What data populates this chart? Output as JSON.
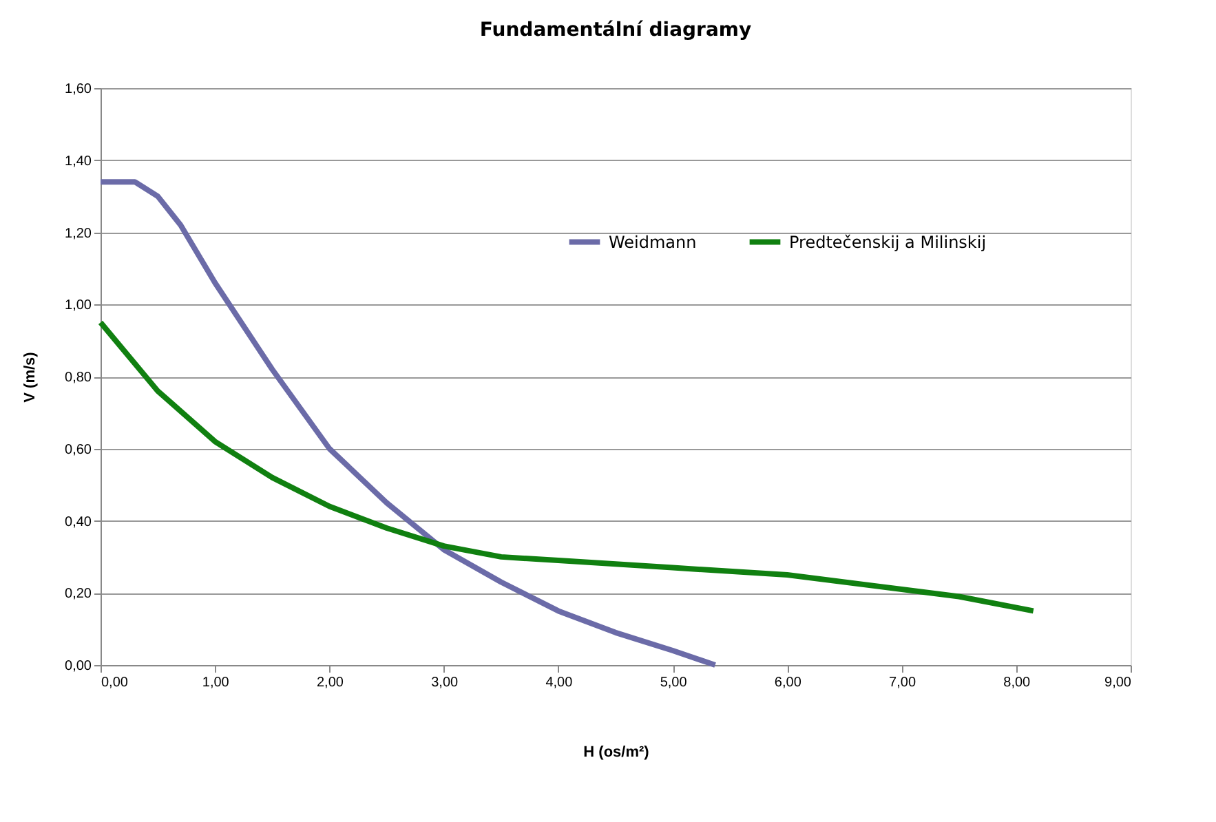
{
  "chart_data": {
    "type": "line",
    "title": "Fundamentální diagramy",
    "xlabel": "H (os/m²)",
    "ylabel": "V (m/s)",
    "xlim": [
      0,
      9
    ],
    "ylim": [
      0,
      1.6
    ],
    "xticks": [
      {
        "value": 0,
        "label": "0,00"
      },
      {
        "value": 1,
        "label": "1,00"
      },
      {
        "value": 2,
        "label": "2,00"
      },
      {
        "value": 3,
        "label": "3,00"
      },
      {
        "value": 4,
        "label": "4,00"
      },
      {
        "value": 5,
        "label": "5,00"
      },
      {
        "value": 6,
        "label": "6,00"
      },
      {
        "value": 7,
        "label": "7,00"
      },
      {
        "value": 8,
        "label": "8,00"
      },
      {
        "value": 9,
        "label": "9,00"
      }
    ],
    "yticks": [
      {
        "value": 0,
        "label": "0,00"
      },
      {
        "value": 0.2,
        "label": "0,20"
      },
      {
        "value": 0.4,
        "label": "0,40"
      },
      {
        "value": 0.6,
        "label": "0,60"
      },
      {
        "value": 0.8,
        "label": "0,80"
      },
      {
        "value": 1.0,
        "label": "1,00"
      },
      {
        "value": 1.2,
        "label": "1,20"
      },
      {
        "value": 1.4,
        "label": "1,40"
      },
      {
        "value": 1.6,
        "label": "1,60"
      }
    ],
    "grid": "y",
    "legend": "top right",
    "marker": "none",
    "line_style": "solid",
    "series": [
      {
        "name": "Weidmann",
        "color": "#6b6ba8",
        "x": [
          0,
          0.3,
          0.5,
          0.7,
          1.0,
          1.5,
          2.0,
          2.5,
          3.0,
          3.5,
          4.0,
          4.5,
          5.0,
          5.37
        ],
        "values": [
          1.34,
          1.34,
          1.3,
          1.22,
          1.06,
          0.82,
          0.6,
          0.45,
          0.32,
          0.23,
          0.15,
          0.09,
          0.04,
          0
        ]
      },
      {
        "name": "Predtečenskij a Milinskij",
        "color": "#108010",
        "x": [
          0,
          0.5,
          1.0,
          1.5,
          2.0,
          2.5,
          3.0,
          3.5,
          4.0,
          5.0,
          6.0,
          7.0,
          7.5,
          8.15
        ],
        "values": [
          0.95,
          0.76,
          0.62,
          0.52,
          0.44,
          0.38,
          0.33,
          0.3,
          0.29,
          0.27,
          0.25,
          0.21,
          0.19,
          0.15
        ]
      }
    ]
  }
}
